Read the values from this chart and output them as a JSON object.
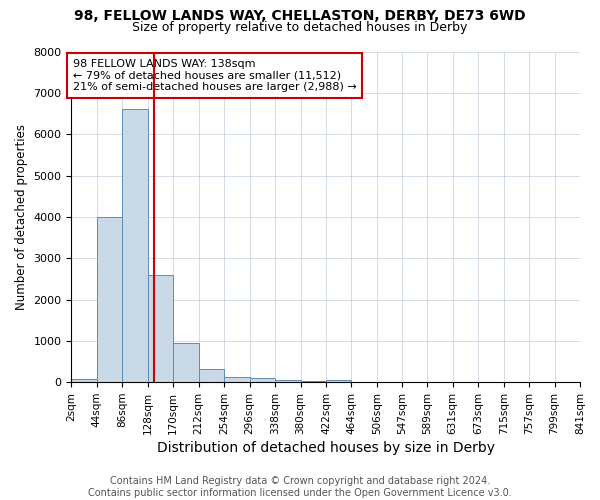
{
  "title": "98, FELLOW LANDS WAY, CHELLASTON, DERBY, DE73 6WD",
  "subtitle": "Size of property relative to detached houses in Derby",
  "xlabel": "Distribution of detached houses by size in Derby",
  "ylabel": "Number of detached properties",
  "bin_edges": [
    2,
    44,
    86,
    128,
    170,
    212,
    254,
    296,
    338,
    380,
    422,
    464,
    506,
    547,
    589,
    631,
    673,
    715,
    757,
    799,
    841
  ],
  "bar_heights": [
    80,
    4000,
    6600,
    2600,
    960,
    310,
    130,
    90,
    60,
    40,
    60,
    0,
    0,
    0,
    0,
    0,
    0,
    0,
    0,
    0
  ],
  "bar_color": "#c9d9e8",
  "bar_edgecolor": "#5b8db8",
  "property_size": 138,
  "vline_color": "#cc0000",
  "annotation_text": "98 FELLOW LANDS WAY: 138sqm\n← 79% of detached houses are smaller (11,512)\n21% of semi-detached houses are larger (2,988) →",
  "annotation_box_color": "#ffffff",
  "annotation_box_edgecolor": "#cc0000",
  "ylim": [
    0,
    8000
  ],
  "footnote": "Contains HM Land Registry data © Crown copyright and database right 2024.\nContains public sector information licensed under the Open Government Licence v3.0.",
  "title_fontsize": 10,
  "subtitle_fontsize": 9,
  "xlabel_fontsize": 10,
  "ylabel_fontsize": 8.5,
  "annotation_fontsize": 8,
  "tick_fontsize": 7.5,
  "footnote_fontsize": 7,
  "ytick_fontsize": 8
}
